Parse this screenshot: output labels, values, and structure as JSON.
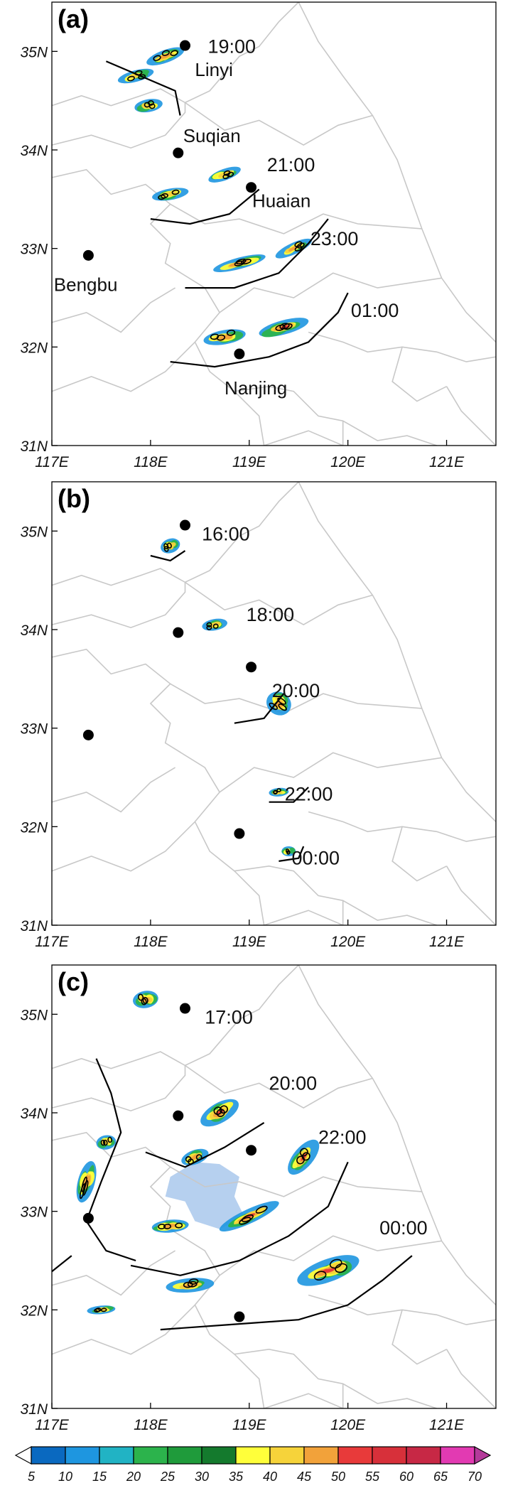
{
  "panels": [
    {
      "label": "(a)",
      "x_ticks": [
        "117E",
        "118E",
        "119E",
        "120E",
        "121E"
      ],
      "y_ticks": [
        "35N",
        "34N",
        "33N",
        "32N",
        "31N"
      ],
      "times": [
        {
          "text": "19:00",
          "lon": 118.58,
          "lat": 35.05
        },
        {
          "text": "21:00",
          "lon": 119.18,
          "lat": 33.85
        },
        {
          "text": "23:00",
          "lon": 119.62,
          "lat": 33.1
        },
        {
          "text": "01:00",
          "lon": 120.03,
          "lat": 32.37
        }
      ],
      "cities": [
        {
          "name": "Linyi",
          "lon": 118.35,
          "lat": 35.06,
          "label": "Linyi",
          "label_lon": 118.45,
          "label_lat": 34.75
        },
        {
          "name": "Suqian",
          "lon": 118.28,
          "lat": 33.97,
          "label": "Suqian",
          "label_lon": 118.33,
          "label_lat": 34.08
        },
        {
          "name": "Huaian",
          "lon": 119.02,
          "lat": 33.62,
          "label": "Huaian",
          "label_lon": 119.03,
          "label_lat": 33.42
        },
        {
          "name": "Bengbu",
          "lon": 117.37,
          "lat": 32.93,
          "label": "Bengbu",
          "label_lon": 117.02,
          "label_lat": 32.57
        },
        {
          "name": "Nanjing",
          "lon": 118.9,
          "lat": 31.93,
          "label": "Nanjing",
          "label_lon": 118.75,
          "label_lat": 31.52
        }
      ]
    },
    {
      "label": "(b)",
      "x_ticks": [
        "117E",
        "118E",
        "119E",
        "120E",
        "121E"
      ],
      "y_ticks": [
        "35N",
        "34N",
        "33N",
        "32N",
        "31N"
      ],
      "times": [
        {
          "text": "16:00",
          "lon": 118.52,
          "lat": 34.97
        },
        {
          "text": "18:00",
          "lon": 118.97,
          "lat": 34.15
        },
        {
          "text": "20:00",
          "lon": 119.23,
          "lat": 33.38
        },
        {
          "text": "22:00",
          "lon": 119.36,
          "lat": 32.33
        },
        {
          "text": "00:00",
          "lon": 119.43,
          "lat": 31.68
        }
      ],
      "cities": [
        {
          "name": "Linyi",
          "lon": 118.35,
          "lat": 35.06,
          "label": "",
          "label_lon": 0,
          "label_lat": 0
        },
        {
          "name": "Suqian",
          "lon": 118.28,
          "lat": 33.97,
          "label": "",
          "label_lon": 0,
          "label_lat": 0
        },
        {
          "name": "Huaian",
          "lon": 119.02,
          "lat": 33.62,
          "label": "",
          "label_lon": 0,
          "label_lat": 0
        },
        {
          "name": "Bengbu",
          "lon": 117.37,
          "lat": 32.93,
          "label": "",
          "label_lon": 0,
          "label_lat": 0
        },
        {
          "name": "Nanjing",
          "lon": 118.9,
          "lat": 31.93,
          "label": "",
          "label_lon": 0,
          "label_lat": 0
        }
      ]
    },
    {
      "label": "(c)",
      "x_ticks": [
        "117E",
        "118E",
        "119E",
        "120E",
        "121E"
      ],
      "y_ticks": [
        "35N",
        "34N",
        "33N",
        "32N",
        "31N"
      ],
      "times": [
        {
          "text": "17:00",
          "lon": 118.55,
          "lat": 34.97
        },
        {
          "text": "20:00",
          "lon": 119.2,
          "lat": 34.3
        },
        {
          "text": "22:00",
          "lon": 119.7,
          "lat": 33.75
        },
        {
          "text": "00:00",
          "lon": 120.32,
          "lat": 32.83
        }
      ],
      "cities": [
        {
          "name": "Linyi",
          "lon": 118.35,
          "lat": 35.06,
          "label": "",
          "label_lon": 0,
          "label_lat": 0
        },
        {
          "name": "Suqian",
          "lon": 118.28,
          "lat": 33.97,
          "label": "",
          "label_lon": 0,
          "label_lat": 0
        },
        {
          "name": "Huaian",
          "lon": 119.02,
          "lat": 33.62,
          "label": "",
          "label_lon": 0,
          "label_lat": 0
        },
        {
          "name": "Bengbu",
          "lon": 117.37,
          "lat": 32.93,
          "label": "",
          "label_lon": 0,
          "label_lat": 0
        },
        {
          "name": "Nanjing",
          "lon": 118.9,
          "lat": 31.93,
          "label": "",
          "label_lon": 0,
          "label_lat": 0
        }
      ]
    }
  ],
  "map_extent": {
    "lon": [
      117,
      121.5
    ],
    "lat": [
      31,
      35.5
    ]
  },
  "colorbar": {
    "ticks": [
      "5",
      "10",
      "15",
      "20",
      "25",
      "30",
      "35",
      "40",
      "45",
      "50",
      "55",
      "60",
      "65",
      "70"
    ],
    "colors": [
      "#ffffff",
      "#0a69c0",
      "#1e96e0",
      "#21b3c4",
      "#2cb34c",
      "#1f9b3b",
      "#147a2d",
      "#ffff3a",
      "#f6d33a",
      "#f2a23a",
      "#e83a3a",
      "#d7303a",
      "#c72845",
      "#e23ab2",
      "#b43a9a"
    ]
  }
}
